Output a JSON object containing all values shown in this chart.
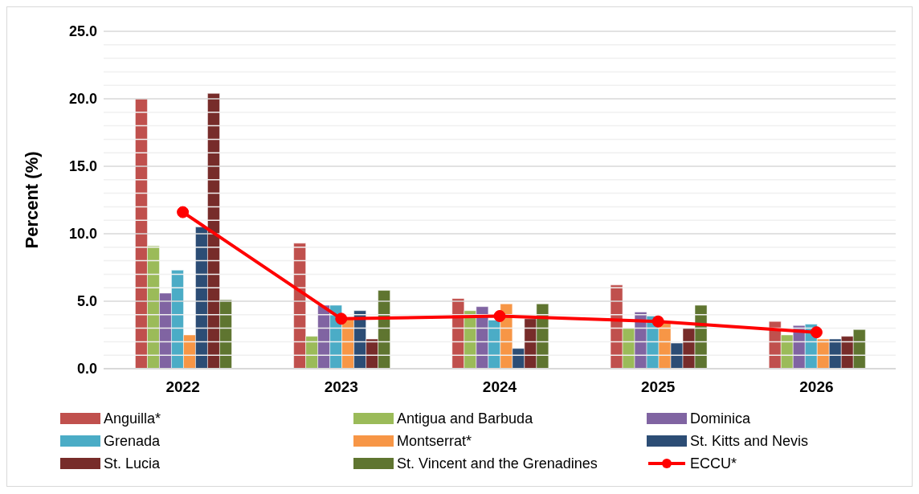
{
  "chart_data": {
    "type": "bar",
    "ylabel": "Percent (%)",
    "categories": [
      "2022",
      "2023",
      "2024",
      "2025",
      "2026"
    ],
    "series": [
      {
        "name": "Anguilla*",
        "color": "#c0504d",
        "values": [
          20.0,
          9.3,
          5.2,
          6.2,
          3.5
        ]
      },
      {
        "name": "Antigua and Barbuda",
        "color": "#9bbb59",
        "values": [
          9.1,
          2.4,
          4.3,
          3.0,
          2.5
        ]
      },
      {
        "name": "Dominica",
        "color": "#8064a2",
        "values": [
          5.6,
          4.7,
          4.6,
          4.2,
          3.2
        ]
      },
      {
        "name": "Grenada",
        "color": "#4bacc6",
        "values": [
          7.3,
          4.7,
          3.6,
          3.9,
          3.3
        ]
      },
      {
        "name": "Montserrat*",
        "color": "#f79646",
        "values": [
          2.5,
          3.7,
          4.8,
          3.5,
          2.2
        ]
      },
      {
        "name": "St. Kitts and Nevis",
        "color": "#2c4d75",
        "values": [
          10.5,
          4.3,
          1.5,
          1.9,
          2.2
        ]
      },
      {
        "name": "St. Lucia",
        "color": "#772c2a",
        "values": [
          20.4,
          2.2,
          3.7,
          3.0,
          2.4
        ]
      },
      {
        "name": "St. Vincent and the Grenadines",
        "color": "#5f7530",
        "values": [
          5.1,
          5.8,
          4.8,
          4.7,
          2.9
        ]
      },
      {
        "name": "ECCU*",
        "color": "#ff0000",
        "type": "line",
        "marker": "circle",
        "values": [
          11.6,
          3.7,
          3.9,
          3.5,
          2.7
        ]
      }
    ],
    "ylim": [
      0,
      25
    ],
    "yticks": [
      {
        "value": 0,
        "label": "0.0"
      },
      {
        "value": 1,
        "label": null
      },
      {
        "value": 2,
        "label": null
      },
      {
        "value": 3,
        "label": null
      },
      {
        "value": 4,
        "label": null
      },
      {
        "value": 5,
        "label": "5.0"
      },
      {
        "value": 6,
        "label": null
      },
      {
        "value": 7,
        "label": null
      },
      {
        "value": 8,
        "label": null
      },
      {
        "value": 9,
        "label": null
      },
      {
        "value": 10,
        "label": "10.0"
      },
      {
        "value": 11,
        "label": null
      },
      {
        "value": 12,
        "label": null
      },
      {
        "value": 13,
        "label": null
      },
      {
        "value": 14,
        "label": null
      },
      {
        "value": 15,
        "label": "15.0"
      },
      {
        "value": 16,
        "label": null
      },
      {
        "value": 17,
        "label": null
      },
      {
        "value": 18,
        "label": null
      },
      {
        "value": 19,
        "label": null
      },
      {
        "value": 20,
        "label": "20.0"
      },
      {
        "value": 21,
        "label": null
      },
      {
        "value": 22,
        "label": null
      },
      {
        "value": 23,
        "label": null
      },
      {
        "value": 24,
        "label": null
      },
      {
        "value": 25,
        "label": "25.0"
      }
    ],
    "grid": "y",
    "legend": "bottom"
  }
}
